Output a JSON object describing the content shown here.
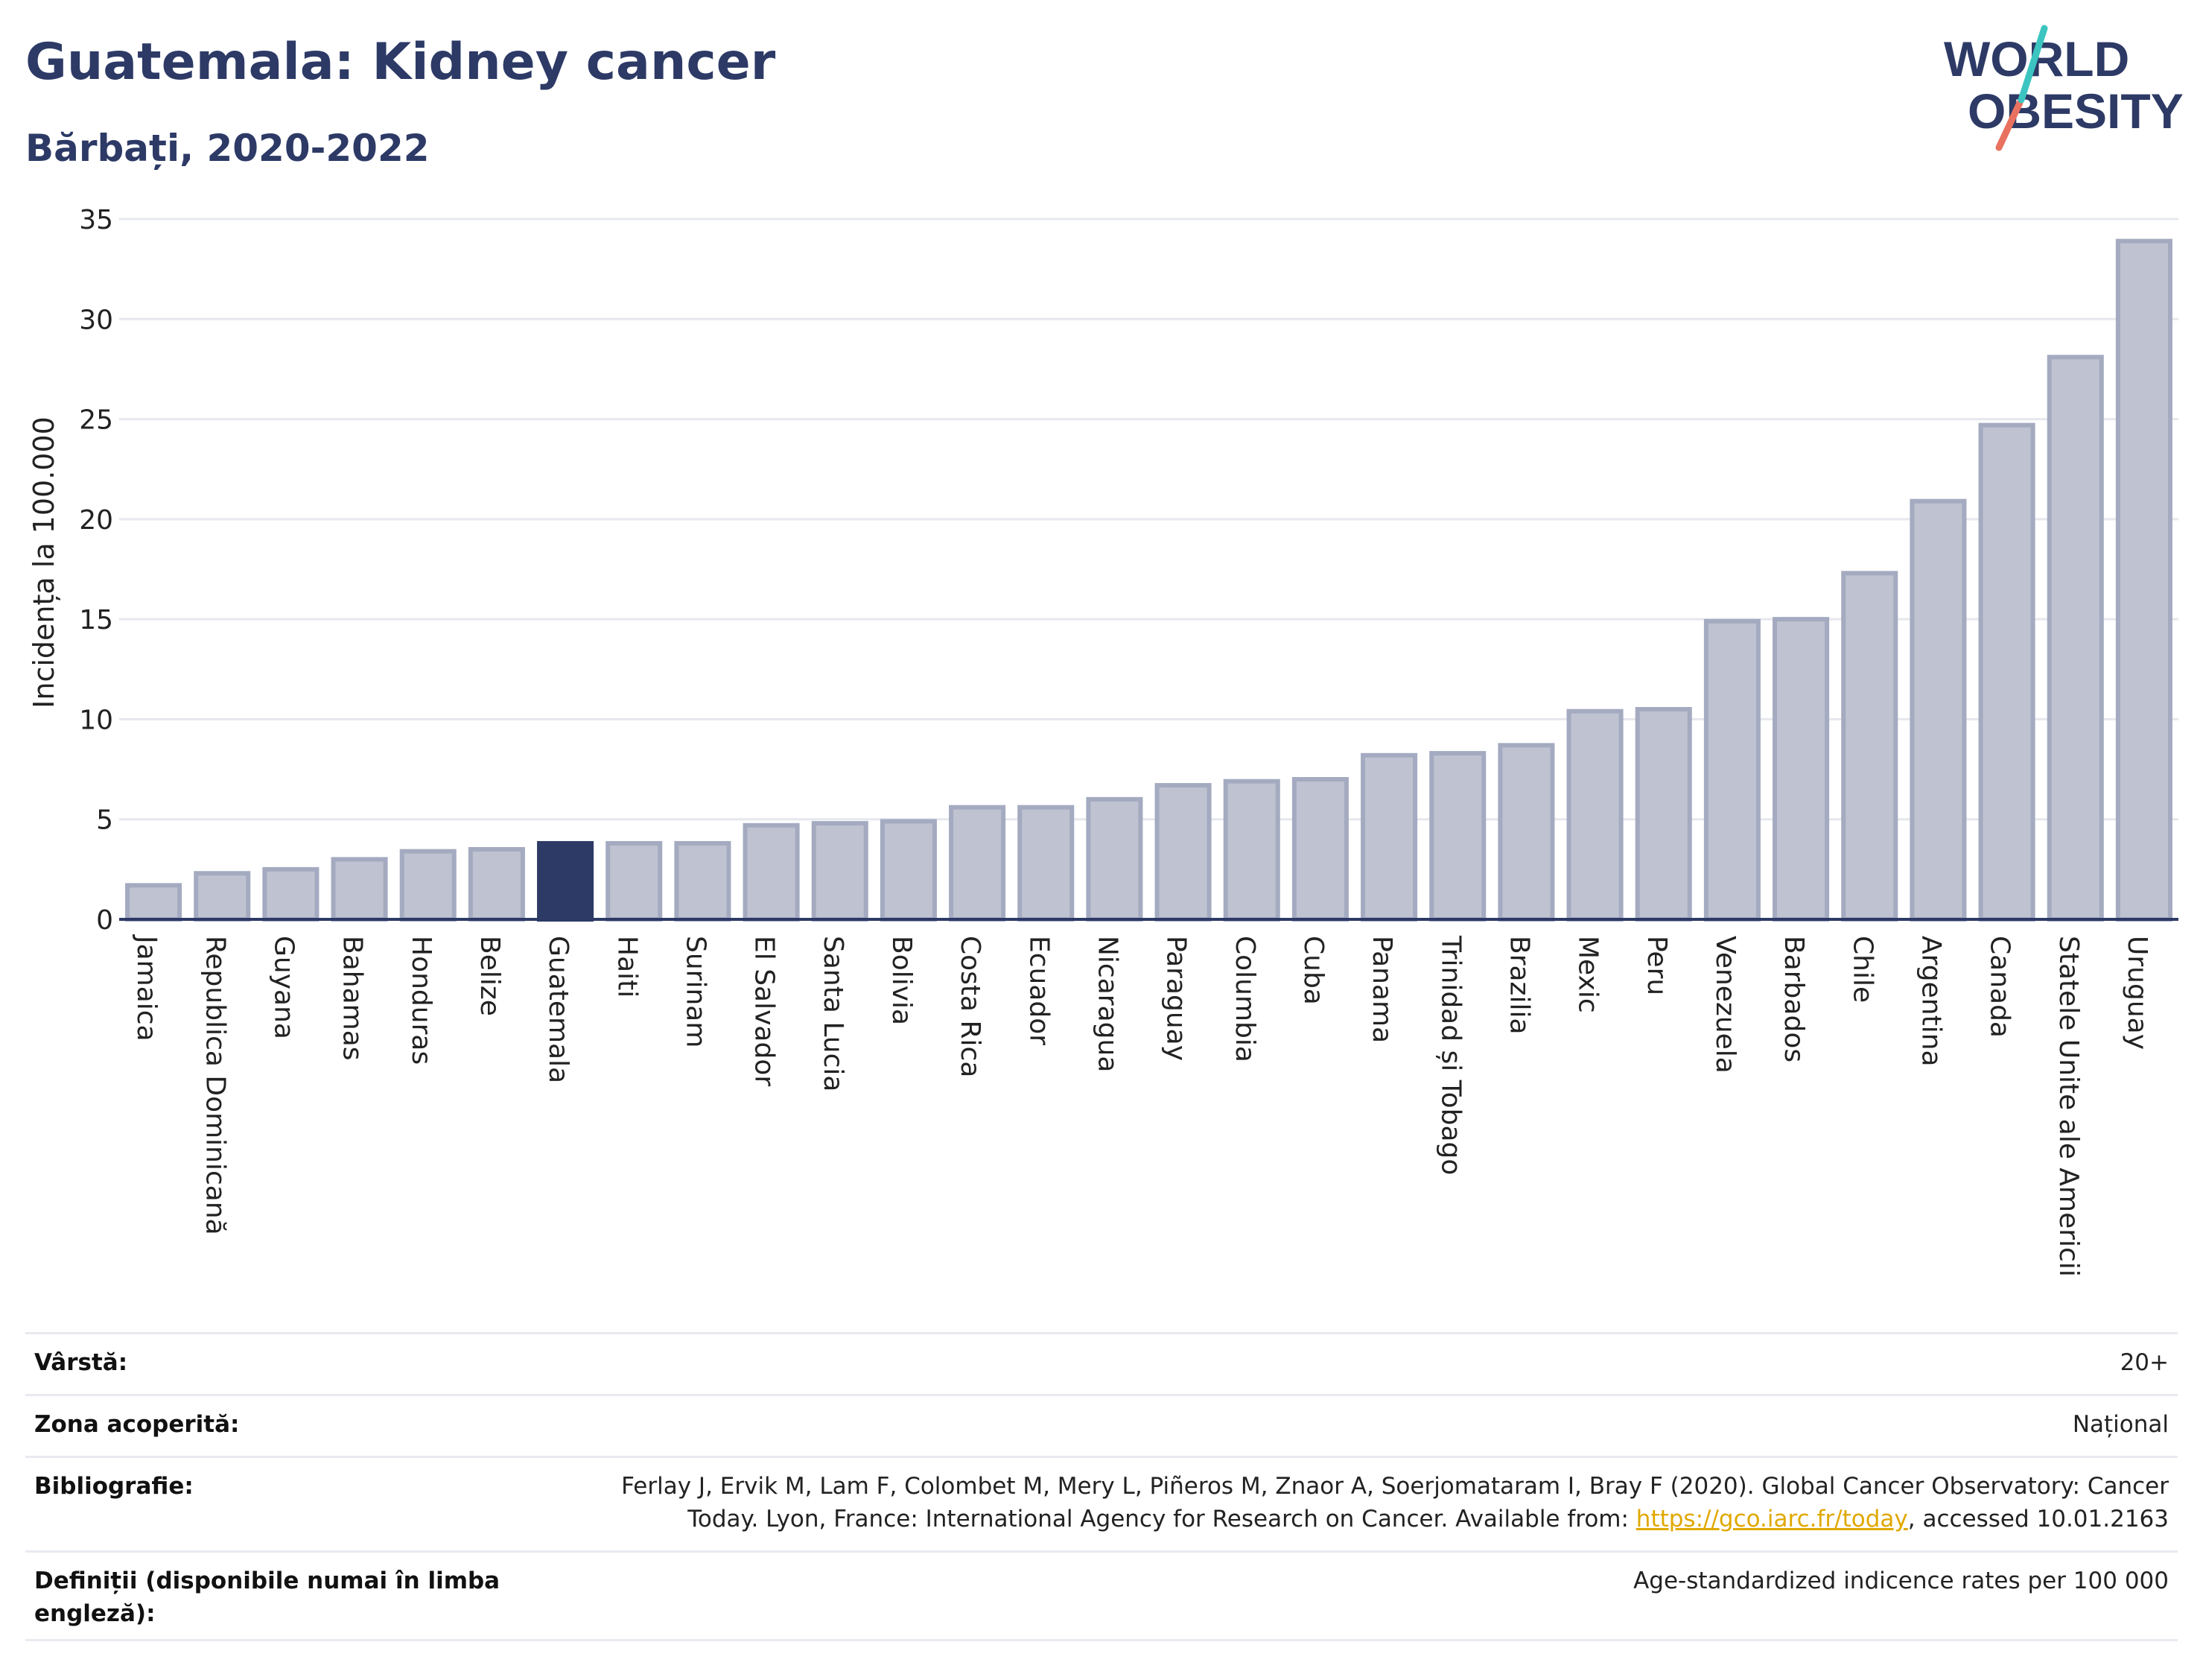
{
  "header": {
    "title": "Guatemala: Kidney cancer",
    "subtitle": "Bărbați, 2020-2022"
  },
  "logo": {
    "line1": "WORLD",
    "line2": "OBESITY"
  },
  "chart_data": {
    "type": "bar",
    "ylabel": "Incidența la 100.000",
    "ylim": [
      0,
      35
    ],
    "yticks": [
      "0",
      "5",
      "10",
      "15",
      "20",
      "25",
      "30",
      "35"
    ],
    "grid": true,
    "highlight": "Guatemala",
    "categories": [
      "Jamaica",
      "Republica Dominicană",
      "Guyana",
      "Bahamas",
      "Honduras",
      "Belize",
      "Guatemala",
      "Haiti",
      "Surinam",
      "El Salvador",
      "Santa Lucia",
      "Bolivia",
      "Costa Rica",
      "Ecuador",
      "Nicaragua",
      "Paraguay",
      "Columbia",
      "Cuba",
      "Panama",
      "Trinidad și Tobago",
      "Brazilia",
      "Mexic",
      "Peru",
      "Venezuela",
      "Barbados",
      "Chile",
      "Argentina",
      "Canada",
      "Statele Unite ale Americii",
      "Uruguay"
    ],
    "values": [
      1.7,
      2.3,
      2.5,
      3.0,
      3.4,
      3.5,
      3.8,
      3.8,
      3.8,
      4.7,
      4.8,
      4.9,
      5.6,
      5.6,
      6.0,
      6.7,
      6.9,
      7.0,
      8.2,
      8.3,
      8.7,
      10.4,
      10.5,
      14.9,
      15.0,
      17.3,
      20.9,
      24.7,
      28.1,
      33.9
    ],
    "colors": {
      "bar": "#bfc3d1",
      "bar_edge": "#a4aac0",
      "highlight": "#2d3a66",
      "grid": "#e6e8ee",
      "axis": "#2d3a66"
    }
  },
  "info": {
    "rows": [
      {
        "label": "Vârstă:",
        "value": "20+"
      },
      {
        "label": "Zona acoperită:",
        "value": "Național"
      },
      {
        "label": "Bibliografie:",
        "value_line1": "Ferlay J, Ervik M, Lam F, Colombet M, Mery L, Piñeros M, Znaor A, Soerjomataram I, Bray F (2020). Global Cancer Observatory: Cancer",
        "value_line2_pre": "Today. Lyon, France: International Agency for Research on Cancer. Available from: ",
        "link": "https://gco.iarc.fr/today",
        "value_line2_post": ", accessed 10.01.2163"
      },
      {
        "label_line1": "Definiții (disponibile numai în limba",
        "label_line2": "engleză):",
        "value": "Age-standardized indicence rates per 100 000"
      }
    ]
  }
}
